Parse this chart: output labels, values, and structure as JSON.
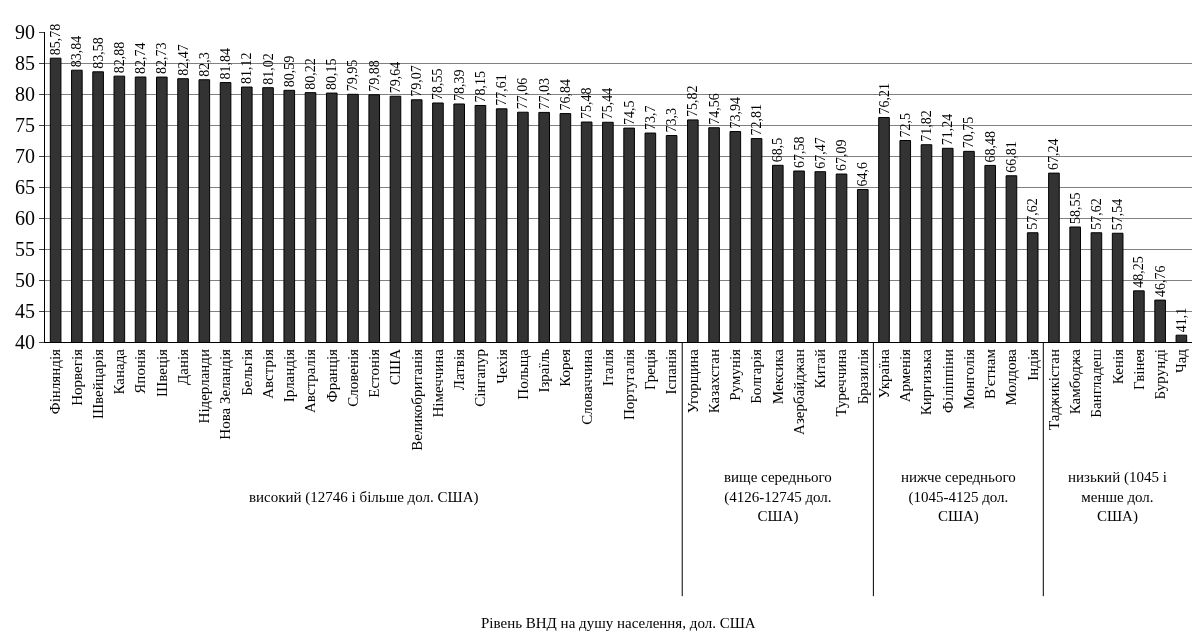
{
  "chart_data": {
    "type": "bar",
    "categories": [
      "Фінляндія",
      "Норвегія",
      "Швейцарія",
      "Канада",
      "Японія",
      "Швеція",
      "Данія",
      "Нідерланди",
      "Нова Зеландія",
      "Бельгія",
      "Австрія",
      "Ірландія",
      "Австралія",
      "Франція",
      "Словенія",
      "Естонія",
      "США",
      "Великобританія",
      "Німеччина",
      "Латвія",
      "Сінгапур",
      "Чехія",
      "Польща",
      "Ізраїль",
      "Корея",
      "Словаччина",
      "Італія",
      "Португалія",
      "Греція",
      "Іспанія",
      "Угорщина",
      "Казахстан",
      "Румунія",
      "Болгарія",
      "Мексика",
      "Азербайджан",
      "Китай",
      "Туреччина",
      "Бразилія",
      "Україна",
      "Арменія",
      "Киргизька",
      "Філіппіни",
      "Монголія",
      "В'єтнам",
      "Молдова",
      "Індія",
      "Таджикістан",
      "Камбоджа",
      "Бангладеш",
      "Кенія",
      "Гвінея",
      "Бурунді",
      "Чад"
    ],
    "values": [
      85.78,
      83.84,
      83.58,
      82.88,
      82.74,
      82.73,
      82.47,
      82.3,
      81.84,
      81.12,
      81.02,
      80.59,
      80.22,
      80.15,
      79.95,
      79.88,
      79.64,
      79.07,
      78.55,
      78.39,
      78.15,
      77.61,
      77.06,
      77.03,
      76.84,
      75.48,
      75.44,
      74.5,
      73.7,
      73.3,
      75.82,
      74.56,
      73.94,
      72.81,
      68.5,
      67.58,
      67.47,
      67.09,
      64.6,
      76.21,
      72.5,
      71.82,
      71.24,
      70.75,
      68.48,
      66.81,
      57.62,
      67.24,
      58.55,
      57.62,
      57.54,
      48.25,
      46.76,
      41.1
    ],
    "value_labels": [
      "85,78",
      "83,84",
      "83,58",
      "82,88",
      "82,74",
      "82,73",
      "82,47",
      "82,3",
      "81,84",
      "81,12",
      "81,02",
      "80,59",
      "80,22",
      "80,15",
      "79,95",
      "79,88",
      "79,64",
      "79,07",
      "78,55",
      "78,39",
      "78,15",
      "77,61",
      "77,06",
      "77,03",
      "76,84",
      "75,48",
      "75,44",
      "74,5",
      "73,7",
      "73,3",
      "75,82",
      "74,56",
      "73,94",
      "72,81",
      "68,5",
      "67,58",
      "67,47",
      "67,09",
      "64,6",
      "76,21",
      "72,5",
      "71,82",
      "71,24",
      "70,75",
      "68,48",
      "66,81",
      "57,62",
      "67,24",
      "58,55",
      "57,62",
      "57,54",
      "48,25",
      "46,76",
      "41,1"
    ],
    "color": "#333333",
    "ylim": [
      40,
      90
    ],
    "yticks": [
      40,
      45,
      50,
      55,
      60,
      65,
      70,
      75,
      80,
      85,
      90
    ],
    "grid": "y",
    "annotations": [
      "високий (12746 і більше дол. США)",
      "вище середнього\n(4126-12745 дол.\nСША)",
      "нижче середнього\n(1045-4125 дол.\nСША)",
      "низький (1045 і\nменше дол.\nСША)",
      "Рівень ВНД на душу населення, дол. США"
    ]
  }
}
